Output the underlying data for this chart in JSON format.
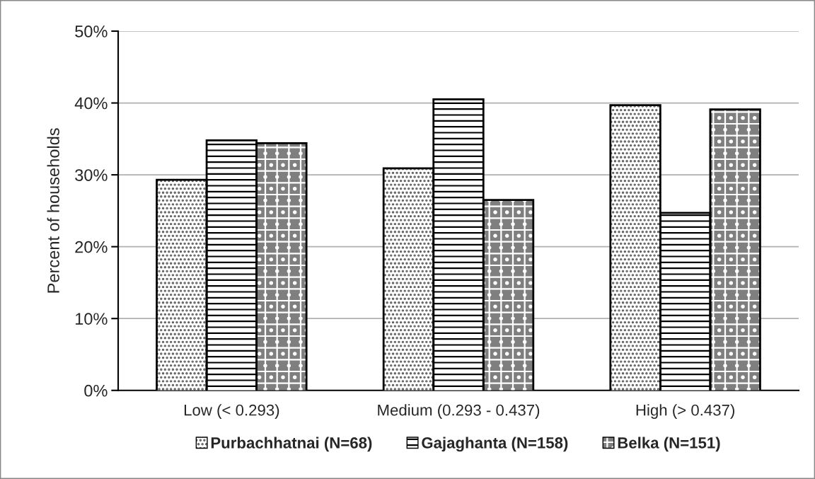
{
  "chart_data": {
    "type": "bar",
    "ylabel": "Percent of households",
    "categories": [
      "Low (< 0.293)",
      "Medium (0.293 - 0.437)",
      "High (> 0.437)"
    ],
    "series": [
      {
        "name": "Purbachhatnai (N=68)",
        "color": "#ffffff",
        "values": [
          29.3,
          30.9,
          39.7
        ]
      },
      {
        "name": "Gajaghanta (N=158)",
        "color": "#ffffff",
        "values": [
          34.8,
          40.5,
          24.7
        ]
      },
      {
        "name": "Belka (N=151)",
        "color": "#7f7f7f",
        "values": [
          34.4,
          26.5,
          39.1
        ]
      }
    ],
    "ylim": [
      0,
      50
    ],
    "yticks": [
      {
        "value": 0,
        "label": "0%"
      },
      {
        "value": 10,
        "label": "10%"
      },
      {
        "value": 20,
        "label": "20%"
      },
      {
        "value": 30,
        "label": "30%"
      },
      {
        "value": 40,
        "label": "40%"
      },
      {
        "value": 50,
        "label": "50%"
      }
    ],
    "grid": "y",
    "legend": "bottom"
  }
}
